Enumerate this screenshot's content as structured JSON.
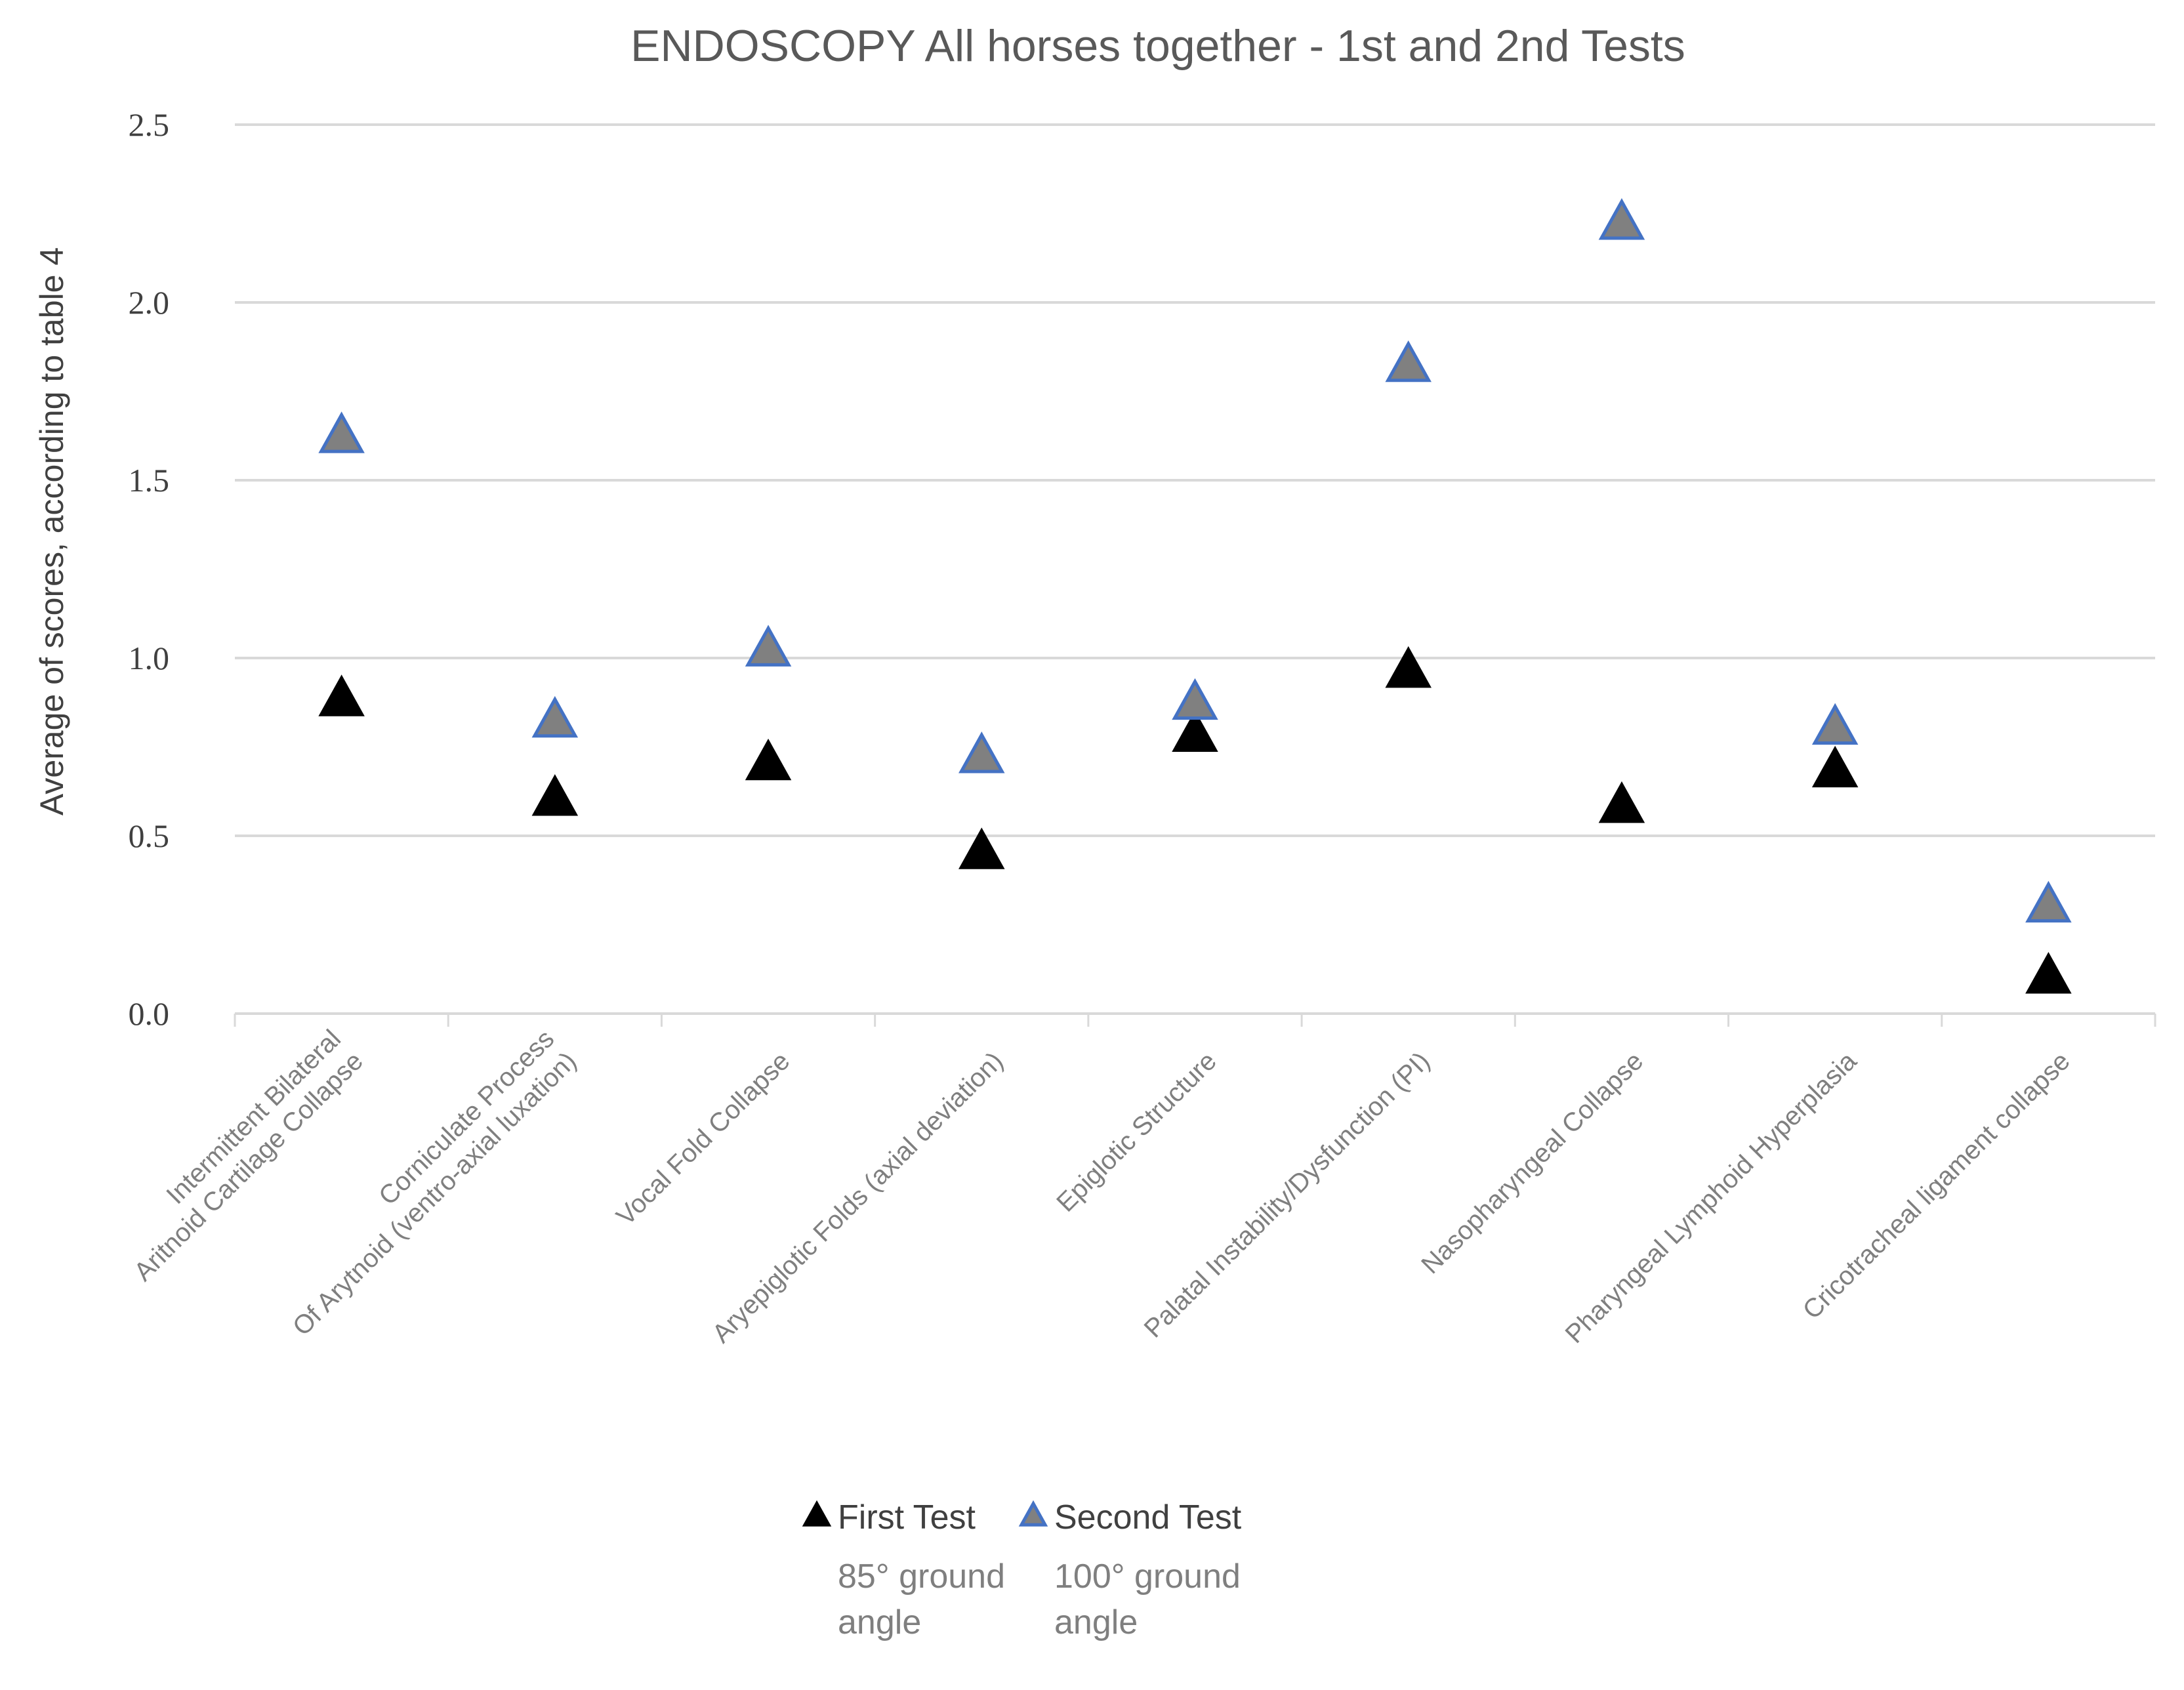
{
  "chart_data": {
    "type": "scatter",
    "title": "ENDOSCOPY All horses together - 1st and 2nd Tests",
    "xlabel": "",
    "ylabel": "Average of scores, according to table 4",
    "ylim": [
      0,
      2.5
    ],
    "yticks": [
      "0.0",
      "0.5",
      "1.0",
      "1.5",
      "2.0",
      "2.5"
    ],
    "grid": true,
    "legend_position": "bottom",
    "categories": [
      [
        "Intermittent Bilateral",
        "Aritnoid Cartilage Collapse"
      ],
      [
        "Corniculate Process",
        "Of Arytnoid (ventro-axial luxation)"
      ],
      [
        "Vocal Fold Collapse"
      ],
      [
        "Aryepiglotic Folds (axial deviation)"
      ],
      [
        "Epiglotic Structure"
      ],
      [
        "Palatal Instability/Dysfunction (PI)"
      ],
      [
        "Nasopharyngeal Collapse"
      ],
      [
        "Pharyngeal Lymphoid Hyperplasia"
      ],
      [
        "Cricotracheal ligament collapse"
      ]
    ],
    "series": [
      {
        "name": "First Test",
        "note": [
          "85°  ground",
          "angle"
        ],
        "marker": "triangle",
        "fill": "#000000",
        "stroke": "#000000",
        "values": [
          0.88,
          0.6,
          0.7,
          0.45,
          0.78,
          0.96,
          0.58,
          0.68,
          0.1
        ]
      },
      {
        "name": "Second Test",
        "note": [
          "100°  ground",
          "angle"
        ],
        "marker": "triangle",
        "fill": "#808080",
        "stroke": "#4472C4",
        "values": [
          1.62,
          0.82,
          1.02,
          0.72,
          0.87,
          1.82,
          2.22,
          0.8,
          0.3
        ]
      }
    ]
  }
}
